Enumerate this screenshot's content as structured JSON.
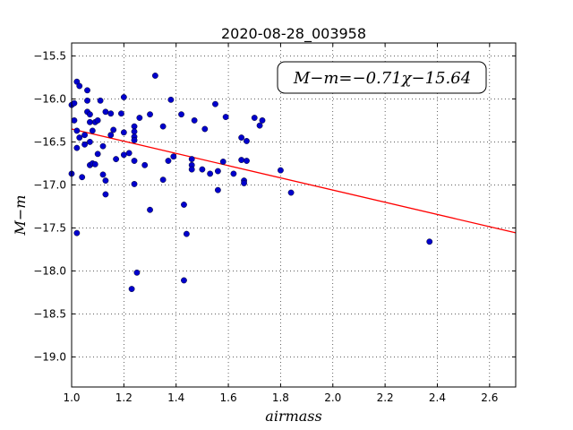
{
  "chart_data": {
    "type": "scatter",
    "title": "2020-08-28_003958",
    "xlabel": "airmass",
    "ylabel": "M−m",
    "xlim": [
      1.0,
      2.7
    ],
    "ylim": [
      -15.35,
      -19.35
    ],
    "y_axis_inverted": true,
    "xticks": [
      1.0,
      1.2,
      1.4,
      1.6,
      1.8,
      2.0,
      2.2,
      2.4,
      2.6
    ],
    "xtick_labels": [
      "1.0",
      "1.2",
      "1.4",
      "1.6",
      "1.8",
      "2.0",
      "2.2",
      "2.4",
      "2.6"
    ],
    "yticks": [
      -15.5,
      -16.0,
      -16.5,
      -17.0,
      -17.5,
      -18.0,
      -18.5,
      -19.0
    ],
    "ytick_labels": [
      "−15.5",
      "−16.0",
      "−16.5",
      "−17.0",
      "−17.5",
      "−18.0",
      "−18.5",
      "−19.0"
    ],
    "grid": true,
    "annotation": "M−m=−0.71χ−15.64",
    "fit": {
      "slope": -0.71,
      "intercept": -15.64,
      "color": "#ff0000"
    },
    "marker_color": "#0000cc",
    "points": [
      [
        1.0,
        -16.07
      ],
      [
        1.01,
        -16.05
      ],
      [
        1.02,
        -15.8
      ],
      [
        1.03,
        -15.85
      ],
      [
        1.01,
        -16.25
      ],
      [
        1.02,
        -16.37
      ],
      [
        1.03,
        -16.45
      ],
      [
        1.02,
        -16.57
      ],
      [
        1.0,
        -16.87
      ],
      [
        1.04,
        -16.91
      ],
      [
        1.02,
        -17.56
      ],
      [
        1.05,
        -16.42
      ],
      [
        1.05,
        -16.53
      ],
      [
        1.06,
        -15.9
      ],
      [
        1.06,
        -16.02
      ],
      [
        1.06,
        -16.15
      ],
      [
        1.07,
        -16.18
      ],
      [
        1.07,
        -16.27
      ],
      [
        1.08,
        -16.37
      ],
      [
        1.07,
        -16.5
      ],
      [
        1.07,
        -16.77
      ],
      [
        1.08,
        -16.75
      ],
      [
        1.09,
        -16.76
      ],
      [
        1.09,
        -16.27
      ],
      [
        1.1,
        -16.25
      ],
      [
        1.1,
        -16.64
      ],
      [
        1.11,
        -16.02
      ],
      [
        1.12,
        -16.55
      ],
      [
        1.12,
        -16.88
      ],
      [
        1.13,
        -16.95
      ],
      [
        1.13,
        -17.11
      ],
      [
        1.13,
        -16.15
      ],
      [
        1.15,
        -16.17
      ],
      [
        1.15,
        -16.42
      ],
      [
        1.16,
        -16.36
      ],
      [
        1.17,
        -16.7
      ],
      [
        1.19,
        -16.17
      ],
      [
        1.2,
        -15.98
      ],
      [
        1.2,
        -16.39
      ],
      [
        1.2,
        -16.65
      ],
      [
        1.22,
        -16.63
      ],
      [
        1.24,
        -16.32
      ],
      [
        1.24,
        -16.38
      ],
      [
        1.24,
        -16.44
      ],
      [
        1.24,
        -16.48
      ],
      [
        1.24,
        -16.72
      ],
      [
        1.24,
        -16.99
      ],
      [
        1.26,
        -16.22
      ],
      [
        1.28,
        -16.77
      ],
      [
        1.3,
        -16.18
      ],
      [
        1.3,
        -17.29
      ],
      [
        1.32,
        -15.73
      ],
      [
        1.35,
        -16.94
      ],
      [
        1.35,
        -16.32
      ],
      [
        1.37,
        -16.72
      ],
      [
        1.38,
        -16.01
      ],
      [
        1.39,
        -16.67
      ],
      [
        1.42,
        -16.18
      ],
      [
        1.43,
        -17.23
      ],
      [
        1.44,
        -17.57
      ],
      [
        1.46,
        -16.77
      ],
      [
        1.46,
        -16.82
      ],
      [
        1.46,
        -16.7
      ],
      [
        1.47,
        -16.25
      ],
      [
        1.5,
        -16.82
      ],
      [
        1.51,
        -16.35
      ],
      [
        1.53,
        -16.87
      ],
      [
        1.55,
        -16.06
      ],
      [
        1.56,
        -16.84
      ],
      [
        1.56,
        -17.06
      ],
      [
        1.58,
        -16.73
      ],
      [
        1.59,
        -16.21
      ],
      [
        1.62,
        -16.87
      ],
      [
        1.65,
        -16.71
      ],
      [
        1.65,
        -16.45
      ],
      [
        1.66,
        -16.95
      ],
      [
        1.66,
        -16.98
      ],
      [
        1.67,
        -16.72
      ],
      [
        1.67,
        -16.49
      ],
      [
        1.7,
        -16.22
      ],
      [
        1.72,
        -16.31
      ],
      [
        1.73,
        -16.25
      ],
      [
        1.8,
        -16.83
      ],
      [
        1.84,
        -17.09
      ],
      [
        2.37,
        -17.66
      ],
      [
        1.23,
        -18.21
      ],
      [
        1.25,
        -18.02
      ],
      [
        1.43,
        -18.11
      ]
    ]
  }
}
